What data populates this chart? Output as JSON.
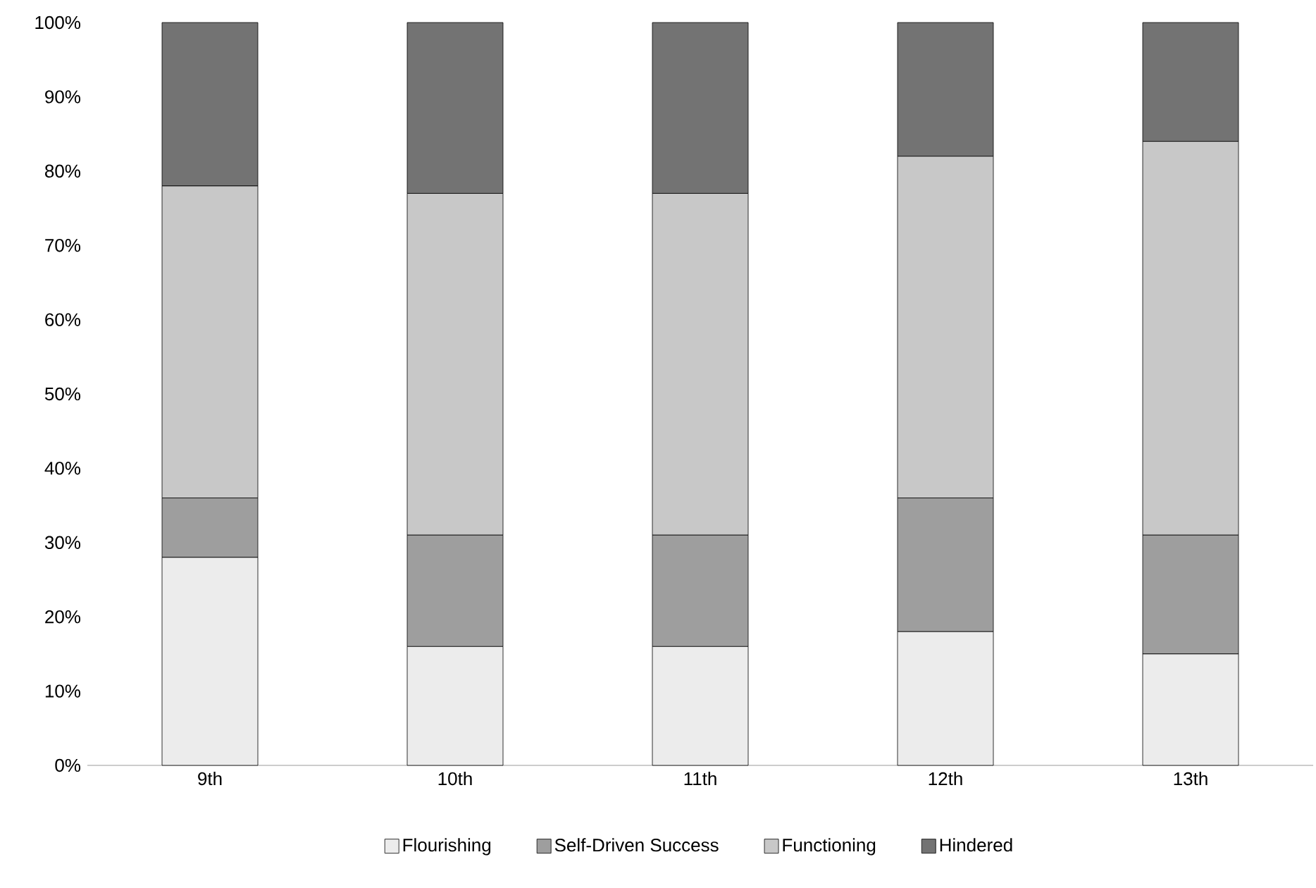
{
  "chart_data": {
    "type": "bar",
    "stacked": true,
    "categories": [
      "9th",
      "10th",
      "11th",
      "12th",
      "13th"
    ],
    "series": [
      {
        "name": "Flourishing",
        "color": "#ececec",
        "values": [
          28,
          16,
          16,
          18,
          15
        ]
      },
      {
        "name": "Self-Driven Success",
        "color": "#9e9e9e",
        "values": [
          8,
          15,
          15,
          18,
          16
        ]
      },
      {
        "name": "Functioning",
        "color": "#c8c8c8",
        "values": [
          42,
          46,
          46,
          46,
          53
        ]
      },
      {
        "name": "Hindered",
        "color": "#737373",
        "values": [
          22,
          23,
          23,
          18,
          16
        ]
      }
    ],
    "ylim": [
      0,
      100
    ],
    "yticks": [
      {
        "value": 0,
        "label": "0%"
      },
      {
        "value": 10,
        "label": "10%"
      },
      {
        "value": 20,
        "label": "20%"
      },
      {
        "value": 30,
        "label": "30%"
      },
      {
        "value": 40,
        "label": "40%"
      },
      {
        "value": 50,
        "label": "50%"
      },
      {
        "value": 60,
        "label": "60%"
      },
      {
        "value": 70,
        "label": "70%"
      },
      {
        "value": 80,
        "label": "80%"
      },
      {
        "value": 90,
        "label": "90%"
      },
      {
        "value": 100,
        "label": "100%"
      }
    ],
    "grid": false,
    "legend": "bottom"
  }
}
